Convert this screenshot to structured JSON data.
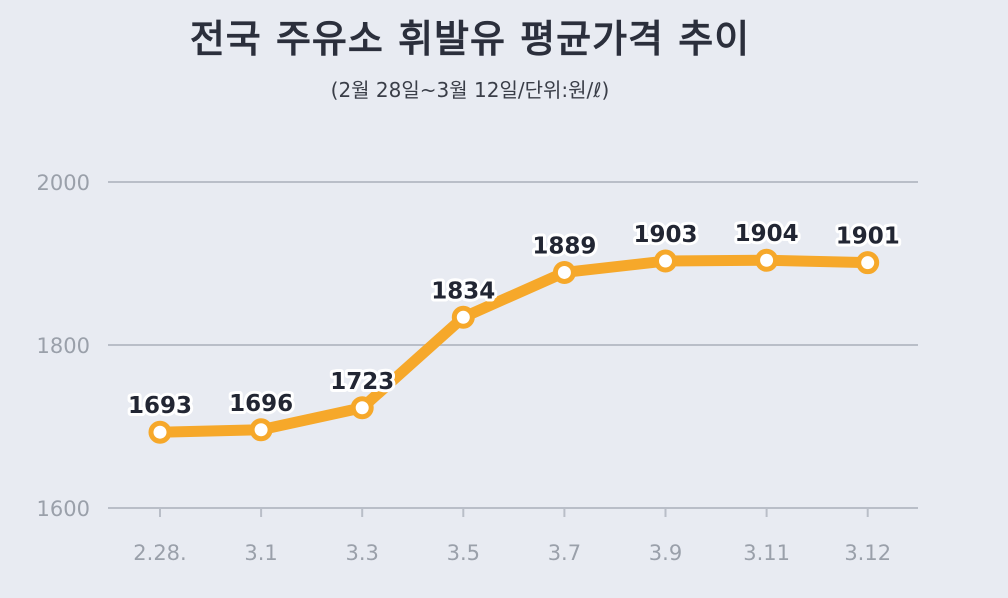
{
  "chart_data": {
    "type": "line",
    "title": "전국 주유소 휘발유 평균가격 추이",
    "subtitle": "(2월 28일~3월 12일/단위:원/ℓ)",
    "categories": [
      "2.28.",
      "3.1",
      "3.3",
      "3.5",
      "3.7",
      "3.9",
      "3.11",
      "3.12"
    ],
    "series": [
      {
        "values": [
          1693,
          1696,
          1723,
          1834,
          1889,
          1903,
          1904,
          1901
        ]
      }
    ],
    "ylim": [
      1600,
      2000
    ],
    "yticks": [
      1600,
      1800,
      2000
    ],
    "grid": true,
    "colors": {
      "line": "#f6a82a",
      "marker_fill": "#ffffff",
      "grid": "#b9bec8",
      "axis_text": "#9aa0aa"
    }
  }
}
